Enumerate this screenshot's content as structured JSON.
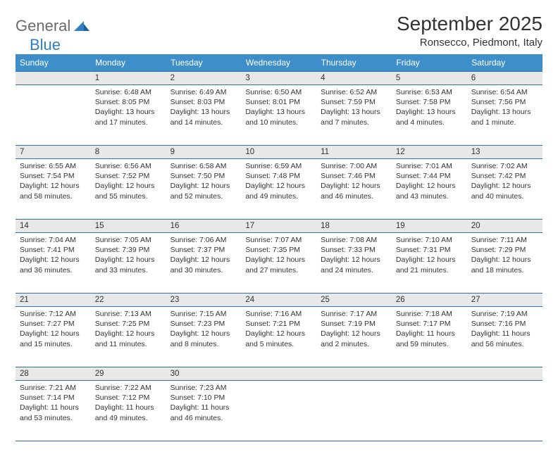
{
  "logo": {
    "text1": "General",
    "text2": "Blue"
  },
  "title": "September 2025",
  "location": "Ronsecco, Piedmont, Italy",
  "colors": {
    "header_bg": "#3e8fc9",
    "header_text": "#ffffff",
    "daynum_bg": "#e8e8e8",
    "rule": "#2f6fa8",
    "body_text": "#333333",
    "logo_gray": "#6b6b6b",
    "logo_blue": "#2f7fc1"
  },
  "weekdays": [
    "Sunday",
    "Monday",
    "Tuesday",
    "Wednesday",
    "Thursday",
    "Friday",
    "Saturday"
  ],
  "weeks": [
    [
      {
        "n": "",
        "sunrise": "",
        "sunset": "",
        "daylight": ""
      },
      {
        "n": "1",
        "sunrise": "Sunrise: 6:48 AM",
        "sunset": "Sunset: 8:05 PM",
        "daylight": "Daylight: 13 hours and 17 minutes."
      },
      {
        "n": "2",
        "sunrise": "Sunrise: 6:49 AM",
        "sunset": "Sunset: 8:03 PM",
        "daylight": "Daylight: 13 hours and 14 minutes."
      },
      {
        "n": "3",
        "sunrise": "Sunrise: 6:50 AM",
        "sunset": "Sunset: 8:01 PM",
        "daylight": "Daylight: 13 hours and 10 minutes."
      },
      {
        "n": "4",
        "sunrise": "Sunrise: 6:52 AM",
        "sunset": "Sunset: 7:59 PM",
        "daylight": "Daylight: 13 hours and 7 minutes."
      },
      {
        "n": "5",
        "sunrise": "Sunrise: 6:53 AM",
        "sunset": "Sunset: 7:58 PM",
        "daylight": "Daylight: 13 hours and 4 minutes."
      },
      {
        "n": "6",
        "sunrise": "Sunrise: 6:54 AM",
        "sunset": "Sunset: 7:56 PM",
        "daylight": "Daylight: 13 hours and 1 minute."
      }
    ],
    [
      {
        "n": "7",
        "sunrise": "Sunrise: 6:55 AM",
        "sunset": "Sunset: 7:54 PM",
        "daylight": "Daylight: 12 hours and 58 minutes."
      },
      {
        "n": "8",
        "sunrise": "Sunrise: 6:56 AM",
        "sunset": "Sunset: 7:52 PM",
        "daylight": "Daylight: 12 hours and 55 minutes."
      },
      {
        "n": "9",
        "sunrise": "Sunrise: 6:58 AM",
        "sunset": "Sunset: 7:50 PM",
        "daylight": "Daylight: 12 hours and 52 minutes."
      },
      {
        "n": "10",
        "sunrise": "Sunrise: 6:59 AM",
        "sunset": "Sunset: 7:48 PM",
        "daylight": "Daylight: 12 hours and 49 minutes."
      },
      {
        "n": "11",
        "sunrise": "Sunrise: 7:00 AM",
        "sunset": "Sunset: 7:46 PM",
        "daylight": "Daylight: 12 hours and 46 minutes."
      },
      {
        "n": "12",
        "sunrise": "Sunrise: 7:01 AM",
        "sunset": "Sunset: 7:44 PM",
        "daylight": "Daylight: 12 hours and 43 minutes."
      },
      {
        "n": "13",
        "sunrise": "Sunrise: 7:02 AM",
        "sunset": "Sunset: 7:42 PM",
        "daylight": "Daylight: 12 hours and 40 minutes."
      }
    ],
    [
      {
        "n": "14",
        "sunrise": "Sunrise: 7:04 AM",
        "sunset": "Sunset: 7:41 PM",
        "daylight": "Daylight: 12 hours and 36 minutes."
      },
      {
        "n": "15",
        "sunrise": "Sunrise: 7:05 AM",
        "sunset": "Sunset: 7:39 PM",
        "daylight": "Daylight: 12 hours and 33 minutes."
      },
      {
        "n": "16",
        "sunrise": "Sunrise: 7:06 AM",
        "sunset": "Sunset: 7:37 PM",
        "daylight": "Daylight: 12 hours and 30 minutes."
      },
      {
        "n": "17",
        "sunrise": "Sunrise: 7:07 AM",
        "sunset": "Sunset: 7:35 PM",
        "daylight": "Daylight: 12 hours and 27 minutes."
      },
      {
        "n": "18",
        "sunrise": "Sunrise: 7:08 AM",
        "sunset": "Sunset: 7:33 PM",
        "daylight": "Daylight: 12 hours and 24 minutes."
      },
      {
        "n": "19",
        "sunrise": "Sunrise: 7:10 AM",
        "sunset": "Sunset: 7:31 PM",
        "daylight": "Daylight: 12 hours and 21 minutes."
      },
      {
        "n": "20",
        "sunrise": "Sunrise: 7:11 AM",
        "sunset": "Sunset: 7:29 PM",
        "daylight": "Daylight: 12 hours and 18 minutes."
      }
    ],
    [
      {
        "n": "21",
        "sunrise": "Sunrise: 7:12 AM",
        "sunset": "Sunset: 7:27 PM",
        "daylight": "Daylight: 12 hours and 15 minutes."
      },
      {
        "n": "22",
        "sunrise": "Sunrise: 7:13 AM",
        "sunset": "Sunset: 7:25 PM",
        "daylight": "Daylight: 12 hours and 11 minutes."
      },
      {
        "n": "23",
        "sunrise": "Sunrise: 7:15 AM",
        "sunset": "Sunset: 7:23 PM",
        "daylight": "Daylight: 12 hours and 8 minutes."
      },
      {
        "n": "24",
        "sunrise": "Sunrise: 7:16 AM",
        "sunset": "Sunset: 7:21 PM",
        "daylight": "Daylight: 12 hours and 5 minutes."
      },
      {
        "n": "25",
        "sunrise": "Sunrise: 7:17 AM",
        "sunset": "Sunset: 7:19 PM",
        "daylight": "Daylight: 12 hours and 2 minutes."
      },
      {
        "n": "26",
        "sunrise": "Sunrise: 7:18 AM",
        "sunset": "Sunset: 7:17 PM",
        "daylight": "Daylight: 11 hours and 59 minutes."
      },
      {
        "n": "27",
        "sunrise": "Sunrise: 7:19 AM",
        "sunset": "Sunset: 7:16 PM",
        "daylight": "Daylight: 11 hours and 56 minutes."
      }
    ],
    [
      {
        "n": "28",
        "sunrise": "Sunrise: 7:21 AM",
        "sunset": "Sunset: 7:14 PM",
        "daylight": "Daylight: 11 hours and 53 minutes."
      },
      {
        "n": "29",
        "sunrise": "Sunrise: 7:22 AM",
        "sunset": "Sunset: 7:12 PM",
        "daylight": "Daylight: 11 hours and 49 minutes."
      },
      {
        "n": "30",
        "sunrise": "Sunrise: 7:23 AM",
        "sunset": "Sunset: 7:10 PM",
        "daylight": "Daylight: 11 hours and 46 minutes."
      },
      {
        "n": "",
        "sunrise": "",
        "sunset": "",
        "daylight": ""
      },
      {
        "n": "",
        "sunrise": "",
        "sunset": "",
        "daylight": ""
      },
      {
        "n": "",
        "sunrise": "",
        "sunset": "",
        "daylight": ""
      },
      {
        "n": "",
        "sunrise": "",
        "sunset": "",
        "daylight": ""
      }
    ]
  ]
}
